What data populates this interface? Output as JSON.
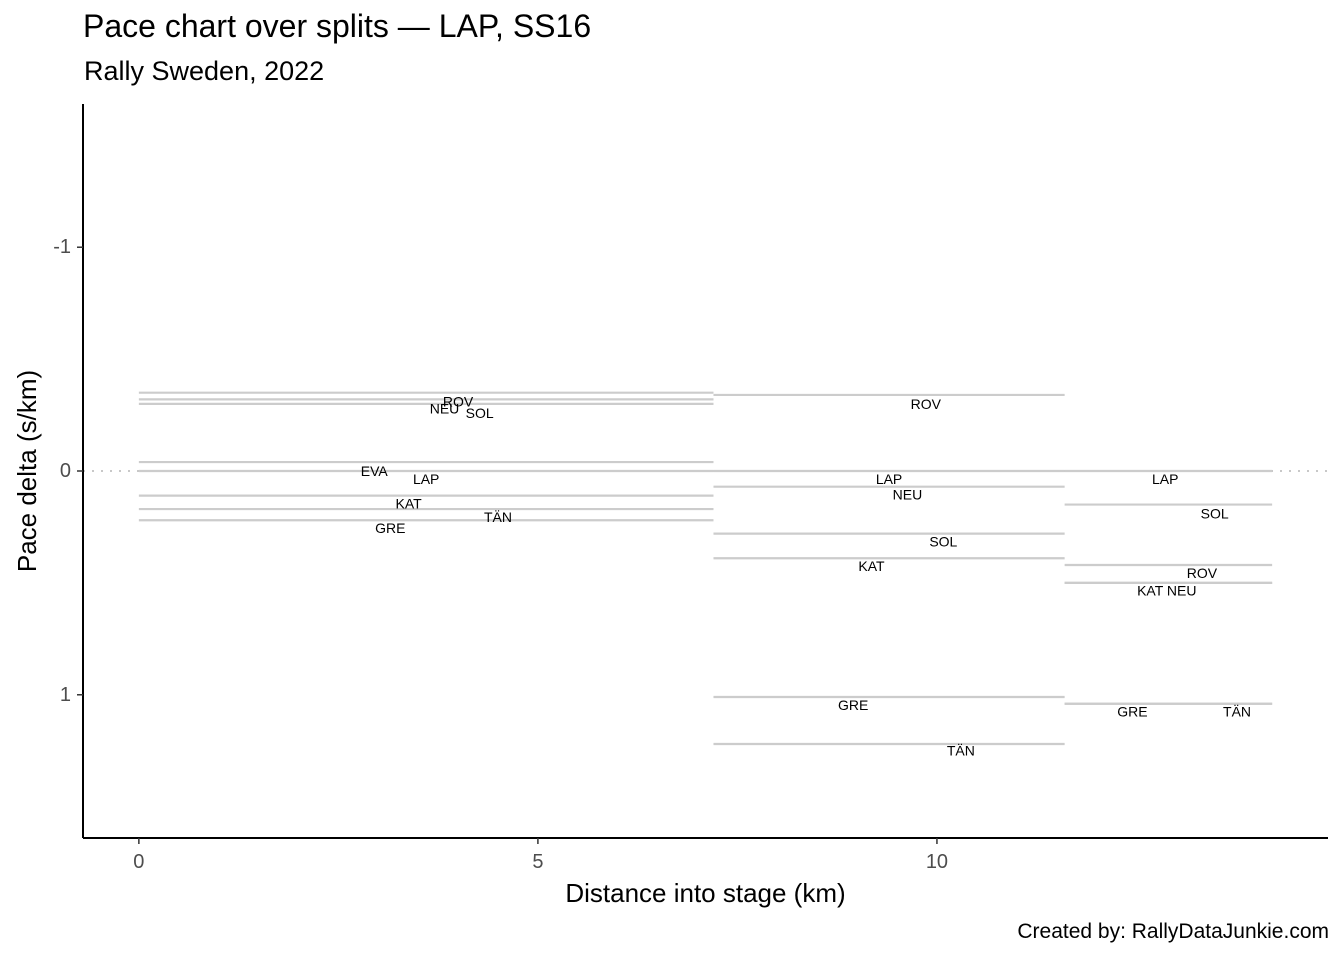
{
  "title": "Pace chart over splits — LAP, SS16",
  "subtitle": "Rally Sweden, 2022",
  "caption": "Created by: RallyDataJunkie.com",
  "chart_data": {
    "type": "line",
    "title": "Pace chart over splits — LAP, SS16",
    "subtitle": "Rally Sweden, 2022",
    "xlabel": "Distance into stage (km)",
    "ylabel": "Pace delta (s/km)",
    "xlim": [
      -0.7,
      14.9
    ],
    "ylim": [
      -1.64,
      1.64
    ],
    "y_reversed": true,
    "x_ticks": [
      0,
      5,
      10
    ],
    "y_ticks": [
      -1,
      0,
      1
    ],
    "reference_line": {
      "y": 0,
      "style": "dotted"
    },
    "grid": false,
    "line_color": "#cccccc",
    "splits": [
      {
        "x_start": 0,
        "x_end": 7.2,
        "paces": [
          {
            "driver": "ROV",
            "y": -0.35
          },
          {
            "driver": "NEU",
            "y": -0.32
          },
          {
            "driver": "SOL",
            "y": -0.3
          },
          {
            "driver": "EVA",
            "y": -0.04
          },
          {
            "driver": "LAP",
            "y": 0.0
          },
          {
            "driver": "KAT",
            "y": 0.11
          },
          {
            "driver": "TÄN",
            "y": 0.17
          },
          {
            "driver": "GRE",
            "y": 0.22
          }
        ]
      },
      {
        "x_start": 7.2,
        "x_end": 11.6,
        "paces": [
          {
            "driver": "ROV",
            "y": -0.34
          },
          {
            "driver": "LAP",
            "y": 0.0
          },
          {
            "driver": "NEU",
            "y": 0.07
          },
          {
            "driver": "SOL",
            "y": 0.28
          },
          {
            "driver": "KAT",
            "y": 0.39
          },
          {
            "driver": "GRE",
            "y": 1.01
          },
          {
            "driver": "TÄN",
            "y": 1.22
          }
        ]
      },
      {
        "x_start": 11.6,
        "x_end": 14.2,
        "paces": [
          {
            "driver": "LAP",
            "y": 0.0
          },
          {
            "driver": "SOL",
            "y": 0.15
          },
          {
            "driver": "ROV",
            "y": 0.42
          },
          {
            "driver": "KAT",
            "y": 0.5
          },
          {
            "driver": "NEU",
            "y": 0.5
          },
          {
            "driver": "GRE",
            "y": 1.04
          },
          {
            "driver": "TÄN",
            "y": 1.04
          }
        ]
      }
    ],
    "labels": [
      {
        "text": "ROV",
        "x": 4.0,
        "y": -0.31
      },
      {
        "text": "NEU",
        "x": 3.83,
        "y": -0.28
      },
      {
        "text": "SOL",
        "x": 4.27,
        "y": -0.26
      },
      {
        "text": "EVA",
        "x": 2.95,
        "y": 0.0
      },
      {
        "text": "LAP",
        "x": 3.6,
        "y": 0.035
      },
      {
        "text": "KAT",
        "x": 3.38,
        "y": 0.145
      },
      {
        "text": "TÄN",
        "x": 4.5,
        "y": 0.205
      },
      {
        "text": "GRE",
        "x": 3.15,
        "y": 0.255
      },
      {
        "text": "ROV",
        "x": 9.86,
        "y": -0.3
      },
      {
        "text": "LAP",
        "x": 9.4,
        "y": 0.035
      },
      {
        "text": "NEU",
        "x": 9.63,
        "y": 0.105
      },
      {
        "text": "SOL",
        "x": 10.08,
        "y": 0.315
      },
      {
        "text": "KAT",
        "x": 9.18,
        "y": 0.425
      },
      {
        "text": "GRE",
        "x": 8.95,
        "y": 1.045
      },
      {
        "text": "TÄN",
        "x": 10.3,
        "y": 1.25
      },
      {
        "text": "LAP",
        "x": 12.86,
        "y": 0.035
      },
      {
        "text": "SOL",
        "x": 13.48,
        "y": 0.19
      },
      {
        "text": "ROV",
        "x": 13.32,
        "y": 0.455
      },
      {
        "text": "KAT NEU",
        "x": 12.88,
        "y": 0.535
      },
      {
        "text": "GRE",
        "x": 12.45,
        "y": 1.075
      },
      {
        "text": "TÄN",
        "x": 13.76,
        "y": 1.075
      }
    ]
  }
}
